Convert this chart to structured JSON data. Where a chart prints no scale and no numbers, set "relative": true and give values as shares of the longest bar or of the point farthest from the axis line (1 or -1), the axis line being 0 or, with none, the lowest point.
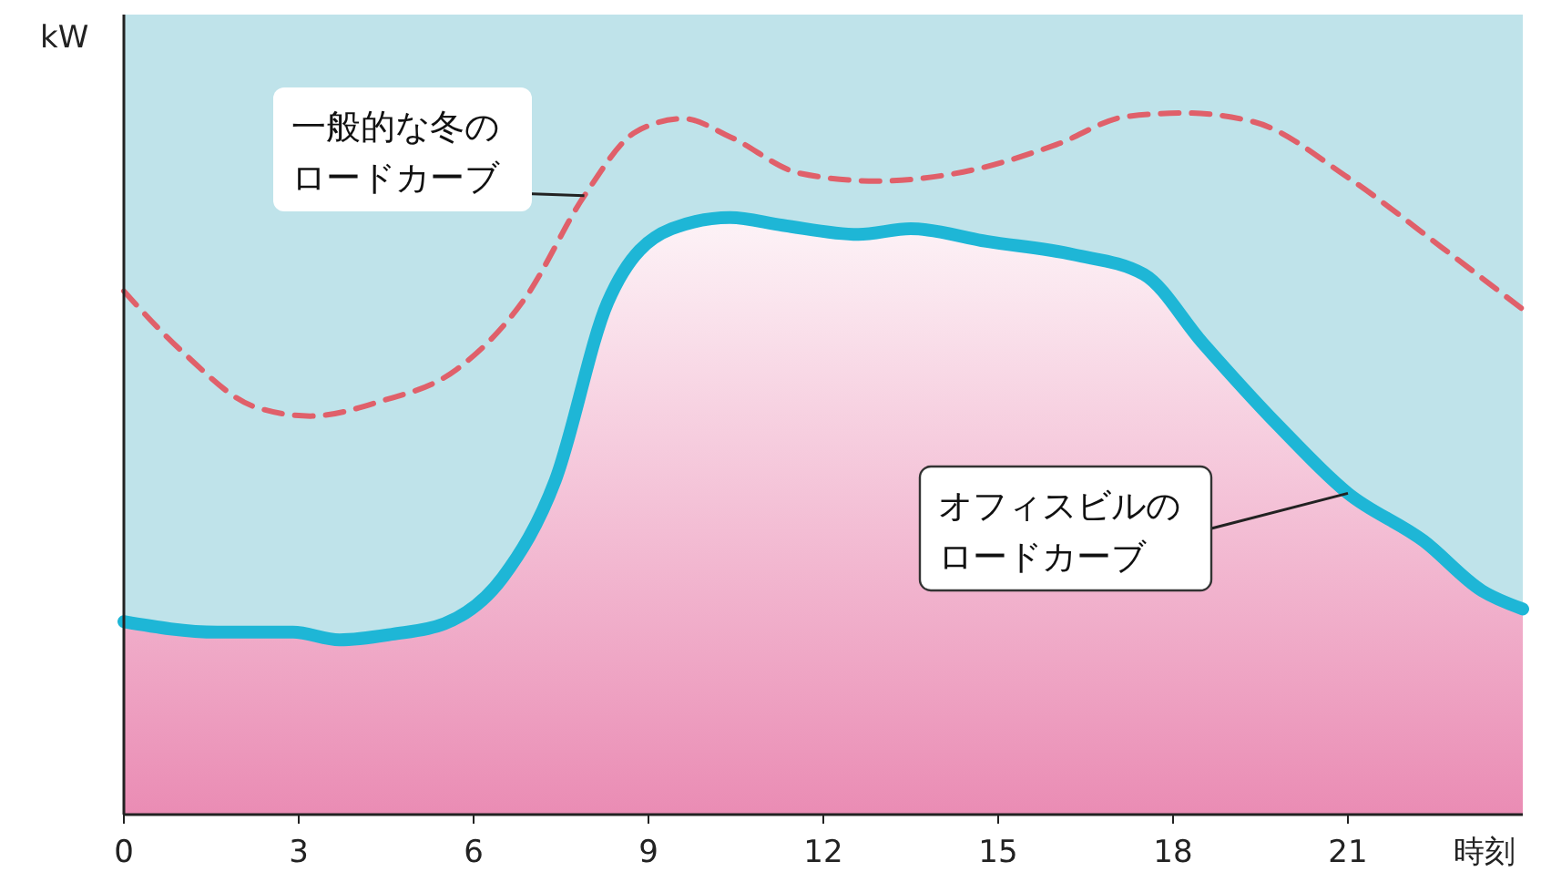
{
  "chart_data": {
    "type": "line",
    "relative": true,
    "xlabel": "時刻",
    "ylabel": "kW",
    "xlim": [
      0,
      24
    ],
    "xticks": [
      0,
      3,
      6,
      9,
      12,
      15,
      18,
      21
    ],
    "series": [
      {
        "name": "一般的な冬のロードカーブ",
        "color": "#e0606a",
        "line_style": "dashed",
        "x": [
          0,
          1,
          2.25,
          3.2,
          4.4,
          5.7,
          6.9,
          7.9,
          8.8,
          9.6,
          10.4,
          11.6,
          12.9,
          14.4,
          16,
          17.2,
          18.2,
          19.4,
          21,
          22.6,
          24
        ],
        "values": [
          0.746,
          0.66,
          0.581,
          0.568,
          0.589,
          0.634,
          0.738,
          0.882,
          0.974,
          0.992,
          0.966,
          0.914,
          0.903,
          0.916,
          0.955,
          0.995,
          1,
          0.987,
          0.908,
          0.809,
          0.72
        ]
      },
      {
        "name": "オフィスビルのロードカーブ",
        "type": "area",
        "color": "#1eb6d6",
        "x": [
          0,
          1.6,
          2.9,
          3.7,
          4.6,
          5.5,
          6.5,
          7.4,
          8.3,
          9.4,
          10.4,
          11.3,
          12.6,
          13.5,
          14.8,
          16.3,
          17.5,
          18.5,
          19.8,
          21,
          22.3,
          23.3,
          24
        ],
        "values": [
          0.275,
          0.26,
          0.26,
          0.249,
          0.257,
          0.272,
          0.338,
          0.476,
          0.73,
          0.835,
          0.851,
          0.84,
          0.827,
          0.835,
          0.817,
          0.798,
          0.77,
          0.673,
          0.555,
          0.458,
          0.39,
          0.319,
          0.293
        ]
      }
    ]
  }
}
